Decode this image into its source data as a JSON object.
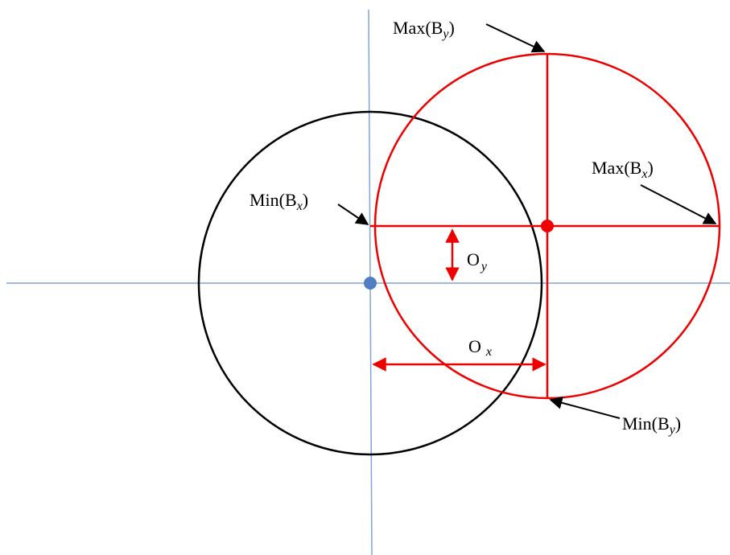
{
  "labels": [
    {
      "text": "Max(B",
      "sub": "y",
      "end": ")"
    },
    {
      "text": "Max(B",
      "sub": "x",
      "end": ")"
    },
    {
      "text": "Min(B",
      "sub": "x",
      "end": ")"
    },
    {
      "text": "Min(B",
      "sub": "y",
      "end": ")"
    },
    {
      "text": "O",
      "sub": "y"
    },
    {
      "text": "O",
      "sub": "x"
    }
  ]
}
